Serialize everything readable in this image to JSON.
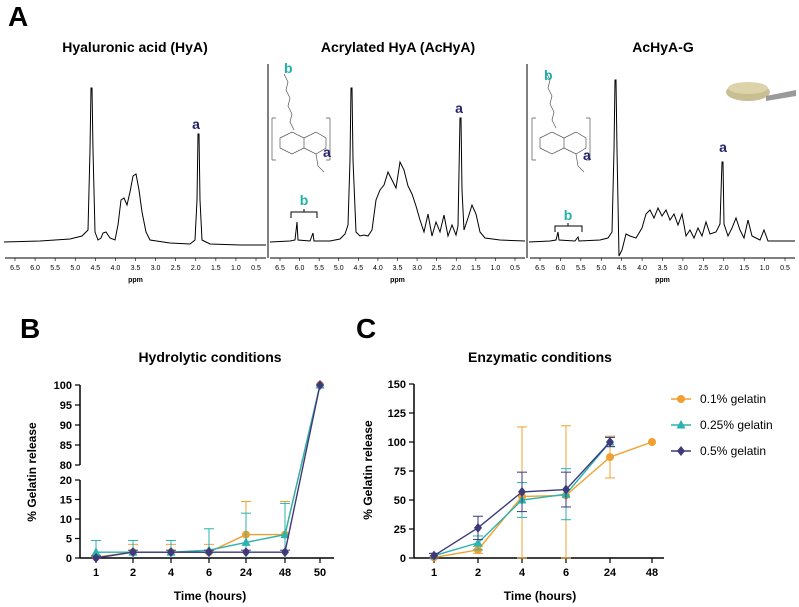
{
  "panel_a": {
    "letter": "A",
    "spectra": [
      {
        "title": "Hyaluronic acid (HyA)",
        "peak_labels": [
          "a"
        ]
      },
      {
        "title": "Acrylated HyA (AcHyA)",
        "peak_labels": [
          "a",
          "b"
        ],
        "struct_labels": [
          "b",
          "a"
        ]
      },
      {
        "title": "AcHyA-G",
        "peak_labels": [
          "a",
          "b"
        ],
        "struct_labels": [
          "b",
          "a"
        ]
      }
    ],
    "ticks": [
      "6.5",
      "6.0",
      "5.5",
      "5.0",
      "4.5",
      "4.0",
      "3.5",
      "3.0",
      "2.5",
      "2.0",
      "1.5",
      "1.0",
      "0.5"
    ],
    "xlabel": "ppm"
  },
  "chart_data": [
    {
      "type": "line",
      "panel_letter": "B",
      "title": "Hydrolytic conditions",
      "xlabel": "Time (hours)",
      "ylabel": "% Gelatin release",
      "categories": [
        "1",
        "2",
        "4",
        "6",
        "24",
        "48",
        "50"
      ],
      "y_axis_broken": true,
      "y_segments": [
        {
          "range": [
            0,
            20
          ],
          "ticks": [
            0,
            5,
            10,
            15,
            20
          ]
        },
        {
          "range": [
            80,
            100
          ],
          "ticks": [
            80,
            85,
            90,
            95,
            100
          ]
        }
      ],
      "series": [
        {
          "color": "#F0A030",
          "marker": "circle",
          "values": [
            0.2,
            1.5,
            1.5,
            1.5,
            6,
            6,
            100
          ],
          "errors": [
            0.5,
            2,
            2,
            2,
            8.5,
            8.5,
            0
          ]
        },
        {
          "color": "#2BB3AF",
          "marker": "triangle",
          "values": [
            1.5,
            1.5,
            1.5,
            2,
            4,
            6,
            100
          ],
          "errors": [
            3,
            3,
            3,
            5.5,
            7.5,
            8,
            0
          ]
        },
        {
          "color": "#3E3A7A",
          "marker": "diamond",
          "values": [
            0,
            1.5,
            1.5,
            1.5,
            1.5,
            1.5,
            100
          ],
          "errors": [
            0.5,
            0.5,
            0.5,
            0.5,
            0.5,
            0.5,
            0
          ]
        }
      ]
    },
    {
      "type": "line",
      "panel_letter": "C",
      "title": "Enzymatic conditions",
      "xlabel": "Time (hours)",
      "ylabel": "% Gelatin release",
      "categories": [
        "1",
        "2",
        "4",
        "6",
        "24",
        "48"
      ],
      "ylim": [
        0,
        150
      ],
      "yticks": [
        0,
        25,
        50,
        75,
        100,
        125,
        150
      ],
      "legend_position": "right",
      "series": [
        {
          "name": "0.1% gelatin",
          "color": "#F0A030",
          "marker": "circle",
          "values": [
            0.5,
            7,
            53,
            54,
            87,
            100
          ],
          "errors": [
            1,
            3,
            60,
            60,
            18,
            0
          ]
        },
        {
          "name": "0.25% gelatin",
          "color": "#2BB3AF",
          "marker": "triangle",
          "values": [
            2,
            13,
            50,
            55,
            100,
            null
          ],
          "errors": [
            2,
            6,
            15,
            22,
            4,
            0
          ]
        },
        {
          "name": "0.5% gelatin",
          "color": "#3E3A7A",
          "marker": "diamond",
          "values": [
            2,
            26,
            57,
            59,
            100,
            null
          ],
          "errors": [
            2,
            10,
            17,
            15,
            4,
            0
          ]
        }
      ]
    }
  ]
}
